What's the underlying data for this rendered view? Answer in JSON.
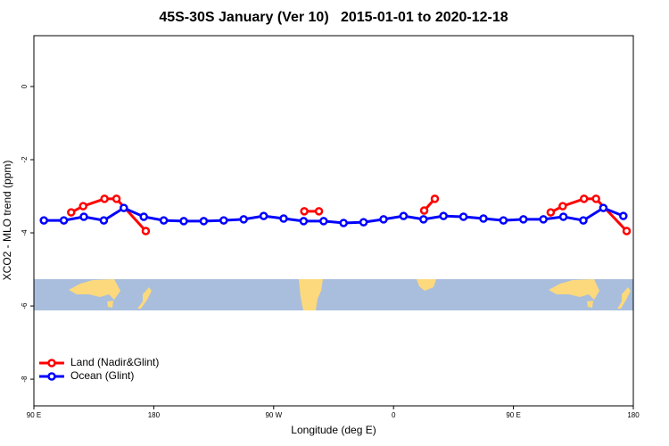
{
  "chart_data": {
    "type": "line",
    "title": "45S-30S January (Ver 10)   2015-01-01 to 2020-12-18",
    "xlabel": "Longitude (deg E)",
    "ylabel": "XCO2 - MLO trend (ppm)",
    "xlim": [
      90,
      540
    ],
    "xticks": [
      {
        "value": 90,
        "label": "90 E"
      },
      180,
      {
        "value": 270,
        "label": "90 W"
      },
      {
        "value": 360,
        "label": "0"
      },
      {
        "value": 450,
        "label": "90 E"
      },
      {
        "value": 540,
        "label": "180"
      }
    ],
    "ylim": [
      -8.73,
      1.39
    ],
    "yticks": [
      0,
      -2,
      -4,
      -6,
      -8
    ],
    "grid": false,
    "legend": "bottomleft",
    "series": [
      {
        "name": "Land (Nadir&Glint)",
        "color": "#ff0000",
        "x": [
          118,
          127,
          143,
          152,
          174,
          null,
          293,
          304,
          null,
          383,
          391,
          null,
          478,
          487,
          503,
          512,
          535
        ],
        "values": [
          -3.44,
          -3.27,
          -3.07,
          -3.07,
          -3.95,
          null,
          -3.41,
          -3.41,
          null,
          -3.39,
          -3.07,
          null,
          -3.44,
          -3.27,
          -3.07,
          -3.07,
          -3.95
        ]
      },
      {
        "name": "Ocean (Glint)",
        "color": "#0000ff",
        "x": [
          97.5,
          112.5,
          127.5,
          142.5,
          157.5,
          172.5,
          187.5,
          202.5,
          217.5,
          232.5,
          247.5,
          262.5,
          277.5,
          292.5,
          307.5,
          322.5,
          337.5,
          352.5,
          367.5,
          382.5,
          397.5,
          412.5,
          427.5,
          442.5,
          457.5,
          472.5,
          487.5,
          502.5,
          517.5,
          532.5
        ],
        "values": [
          -3.66,
          -3.66,
          -3.56,
          -3.66,
          -3.32,
          -3.56,
          -3.66,
          -3.68,
          -3.68,
          -3.66,
          -3.63,
          -3.54,
          -3.61,
          -3.68,
          -3.68,
          -3.73,
          -3.71,
          -3.63,
          -3.54,
          -3.63,
          -3.54,
          -3.56,
          -3.61,
          -3.66,
          -3.63,
          -3.63,
          -3.56,
          -3.66,
          -3.32,
          -3.54
        ]
      }
    ]
  }
}
